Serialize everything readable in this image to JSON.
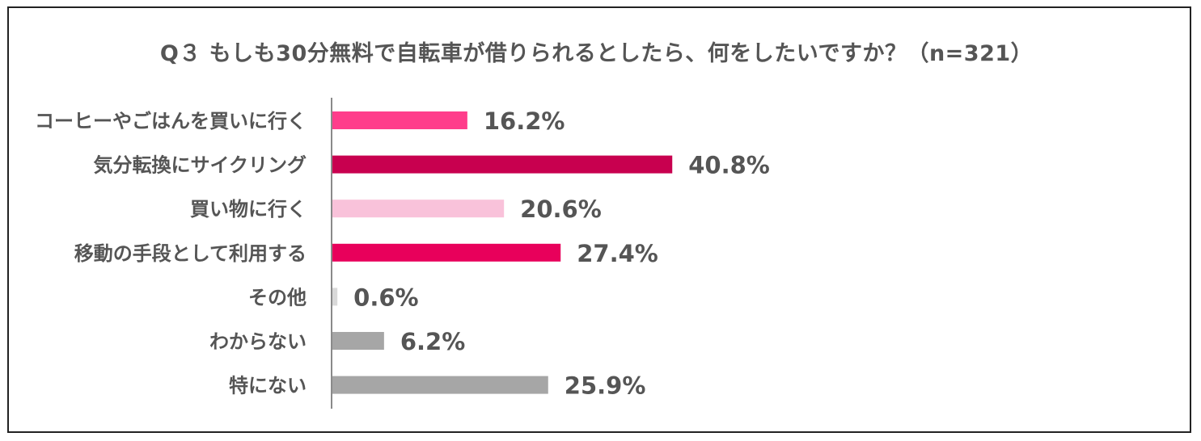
{
  "chart_data": {
    "type": "bar",
    "orientation": "horizontal",
    "title": "Q３ もしも30分無料で自転車が借りられるとしたら、何をしたいですか？（n=321）",
    "categories": [
      "コーヒーやごはんを買いに行く",
      "気分転換にサイクリング",
      "買い物に行く",
      "移動の手段として利用する",
      "その他",
      "わからない",
      "特にない"
    ],
    "values": [
      16.2,
      40.8,
      20.6,
      27.4,
      0.6,
      6.2,
      25.9
    ],
    "value_labels": [
      "16.2%",
      "40.8%",
      "20.6%",
      "27.4%",
      "0.6%",
      "6.2%",
      "25.9%"
    ],
    "colors": [
      "#ff3d8b",
      "#c8004f",
      "#f9c2da",
      "#e8005b",
      "#d9d9d9",
      "#a6a6a6",
      "#a6a6a6"
    ],
    "unit": "%",
    "grid": false,
    "legend": "none"
  }
}
